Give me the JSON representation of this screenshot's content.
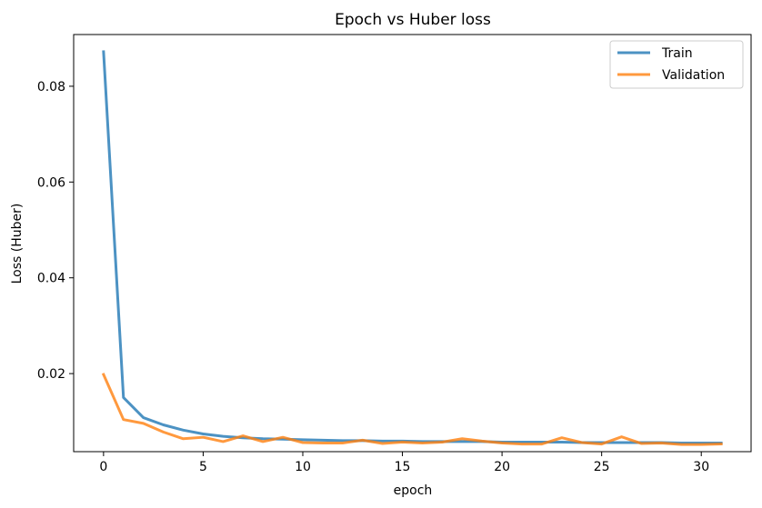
{
  "chart_data": {
    "type": "line",
    "title": "Epoch vs Huber loss",
    "xlabel": "epoch",
    "ylabel": "Loss (Huber)",
    "xlim": [
      -1.5,
      32.5
    ],
    "ylim": [
      0.0037,
      0.0908
    ],
    "xticks": [
      0,
      5,
      10,
      15,
      20,
      25,
      30
    ],
    "yticks": [
      0.02,
      0.04,
      0.06,
      0.08
    ],
    "ytick_labels": [
      "0.02",
      "0.04",
      "0.06",
      "0.08"
    ],
    "grid": false,
    "legend_position": "top-right",
    "x": [
      0,
      1,
      2,
      3,
      4,
      5,
      6,
      7,
      8,
      9,
      10,
      11,
      12,
      13,
      14,
      15,
      16,
      17,
      18,
      19,
      20,
      21,
      22,
      23,
      24,
      25,
      26,
      27,
      28,
      29,
      30,
      31
    ],
    "series": [
      {
        "name": "Train",
        "color": "#1f77b4",
        "values": [
          0.0872,
          0.015,
          0.0108,
          0.0093,
          0.0082,
          0.0074,
          0.0069,
          0.0066,
          0.0064,
          0.0063,
          0.0062,
          0.0061,
          0.006,
          0.006,
          0.0059,
          0.0059,
          0.0058,
          0.0058,
          0.0058,
          0.0058,
          0.0057,
          0.0057,
          0.0057,
          0.0057,
          0.0056,
          0.0056,
          0.0056,
          0.0056,
          0.0056,
          0.0055,
          0.0055,
          0.0055
        ]
      },
      {
        "name": "Validation",
        "color": "#ff7f0e",
        "values": [
          0.0198,
          0.0104,
          0.0096,
          0.0078,
          0.0064,
          0.0067,
          0.0058,
          0.007,
          0.0058,
          0.0067,
          0.0056,
          0.0055,
          0.0055,
          0.0061,
          0.0054,
          0.0057,
          0.0055,
          0.0057,
          0.0064,
          0.0059,
          0.0055,
          0.0053,
          0.0053,
          0.0066,
          0.0056,
          0.0053,
          0.0068,
          0.0054,
          0.0055,
          0.0052,
          0.0052,
          0.0053
        ]
      }
    ]
  }
}
